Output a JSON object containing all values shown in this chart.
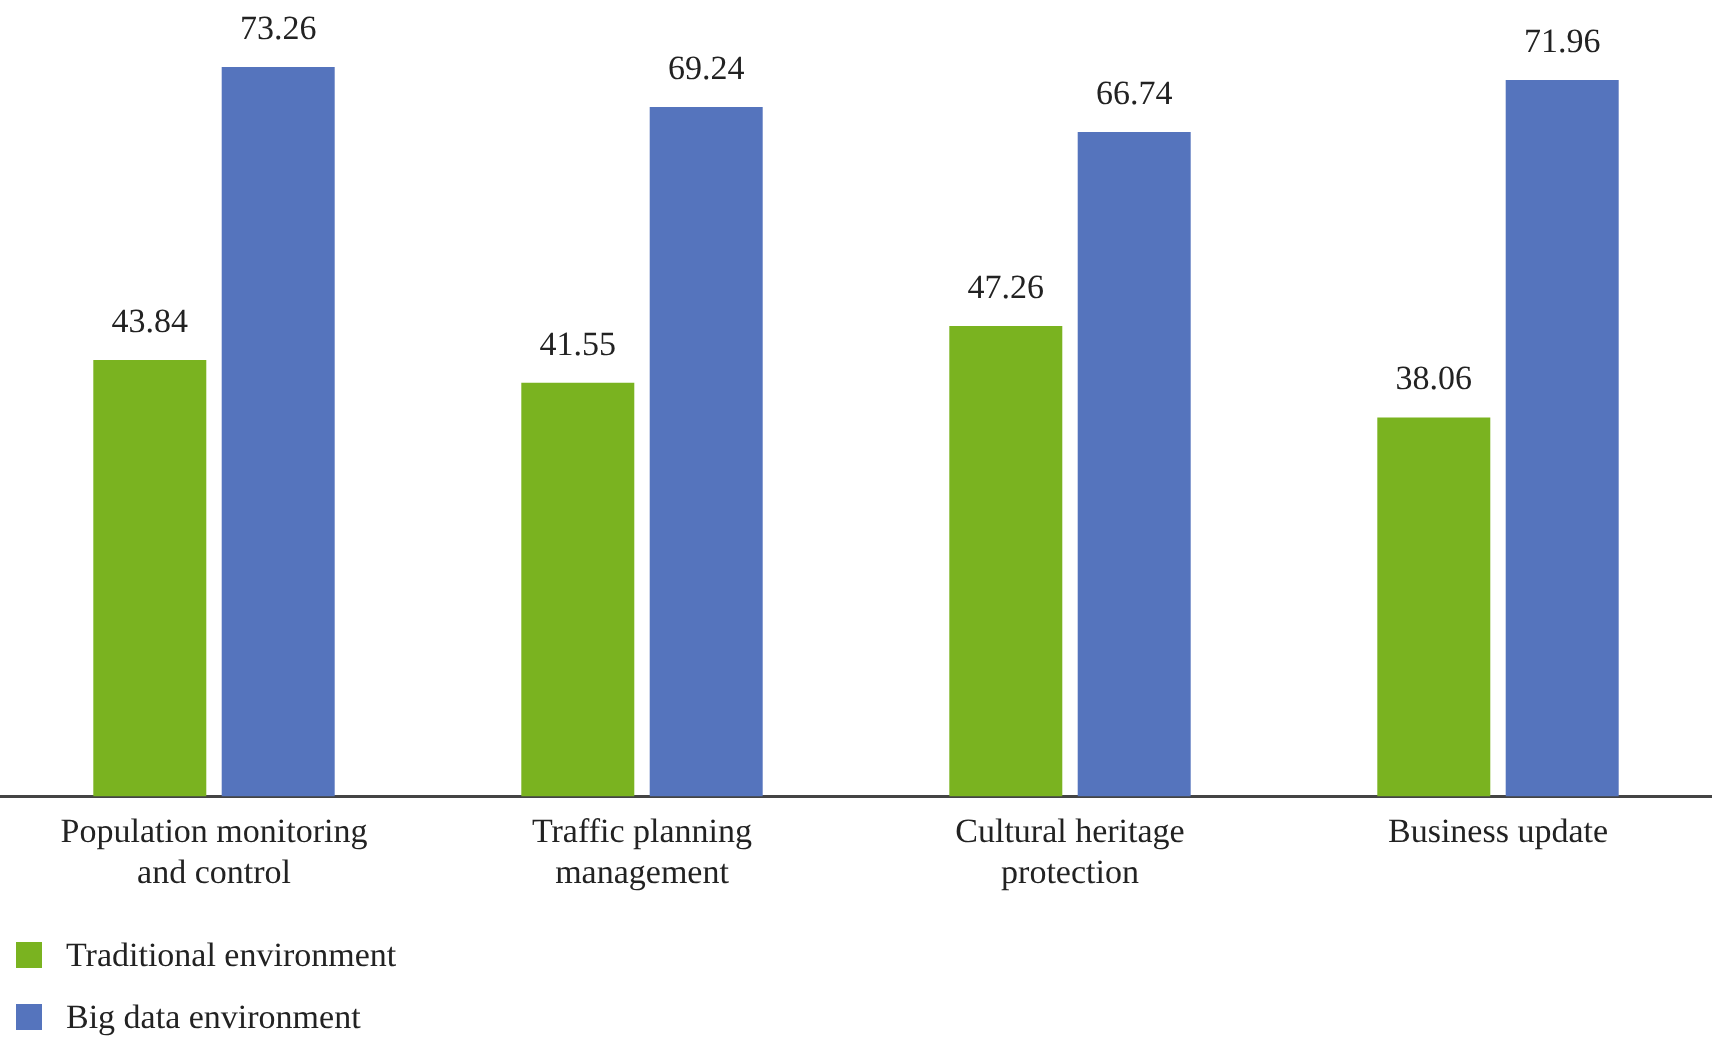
{
  "chart_data": {
    "type": "bar",
    "categories": [
      "Population monitoring and control",
      "Traffic planning management",
      "Cultural heritage protection",
      "Business update"
    ],
    "series": [
      {
        "name": "Traditional environment",
        "color": "#7ab320",
        "values": [
          43.84,
          41.55,
          47.26,
          38.06
        ]
      },
      {
        "name": "Big data environment",
        "color": "#5574bd",
        "values": [
          73.26,
          69.24,
          66.74,
          71.96
        ]
      }
    ],
    "data_labels": true,
    "grid": false,
    "legend": "bottom left",
    "tick_labels": "x"
  }
}
